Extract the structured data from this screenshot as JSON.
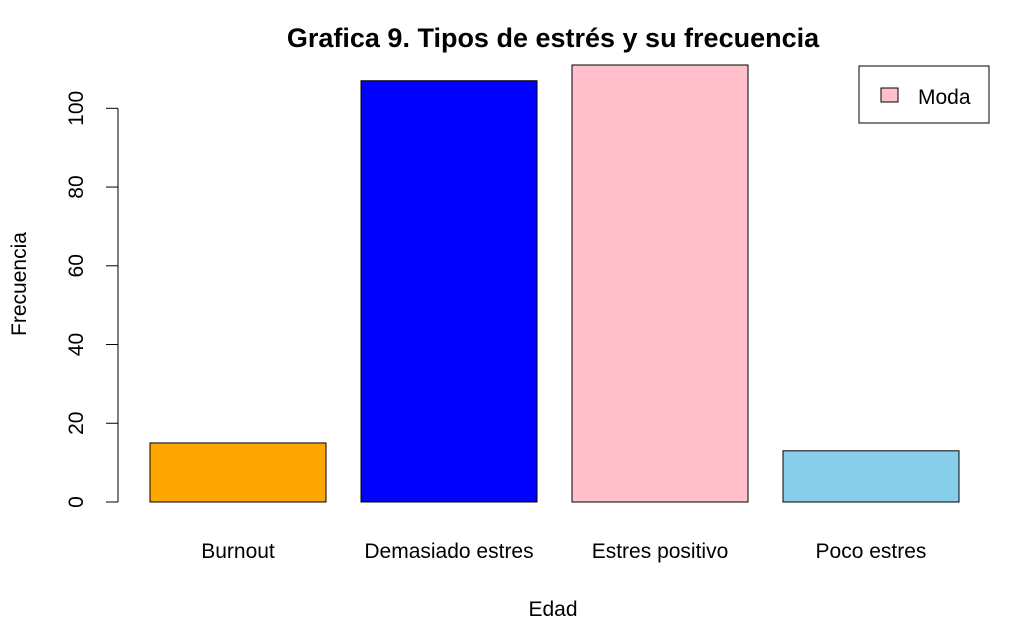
{
  "chart_data": {
    "type": "bar",
    "title": "Grafica 9. Tipos de estrés y su frecuencia",
    "xlabel": "Edad",
    "ylabel": "Frecuencia",
    "categories": [
      "Burnout",
      "Demasiado estres",
      "Estres positivo",
      "Poco estres"
    ],
    "values": [
      15,
      107,
      111,
      13
    ],
    "colors": [
      "#FFA500",
      "#0000FF",
      "#FFC0CB",
      "#87CEEB"
    ],
    "ylim": [
      0,
      111
    ],
    "yticks": [
      "0",
      "20",
      "40",
      "60",
      "80",
      "100"
    ],
    "grid": false,
    "legend": {
      "position": "top-right",
      "entries": [
        {
          "label": "Moda",
          "color": "#FFC0CB"
        }
      ]
    }
  }
}
